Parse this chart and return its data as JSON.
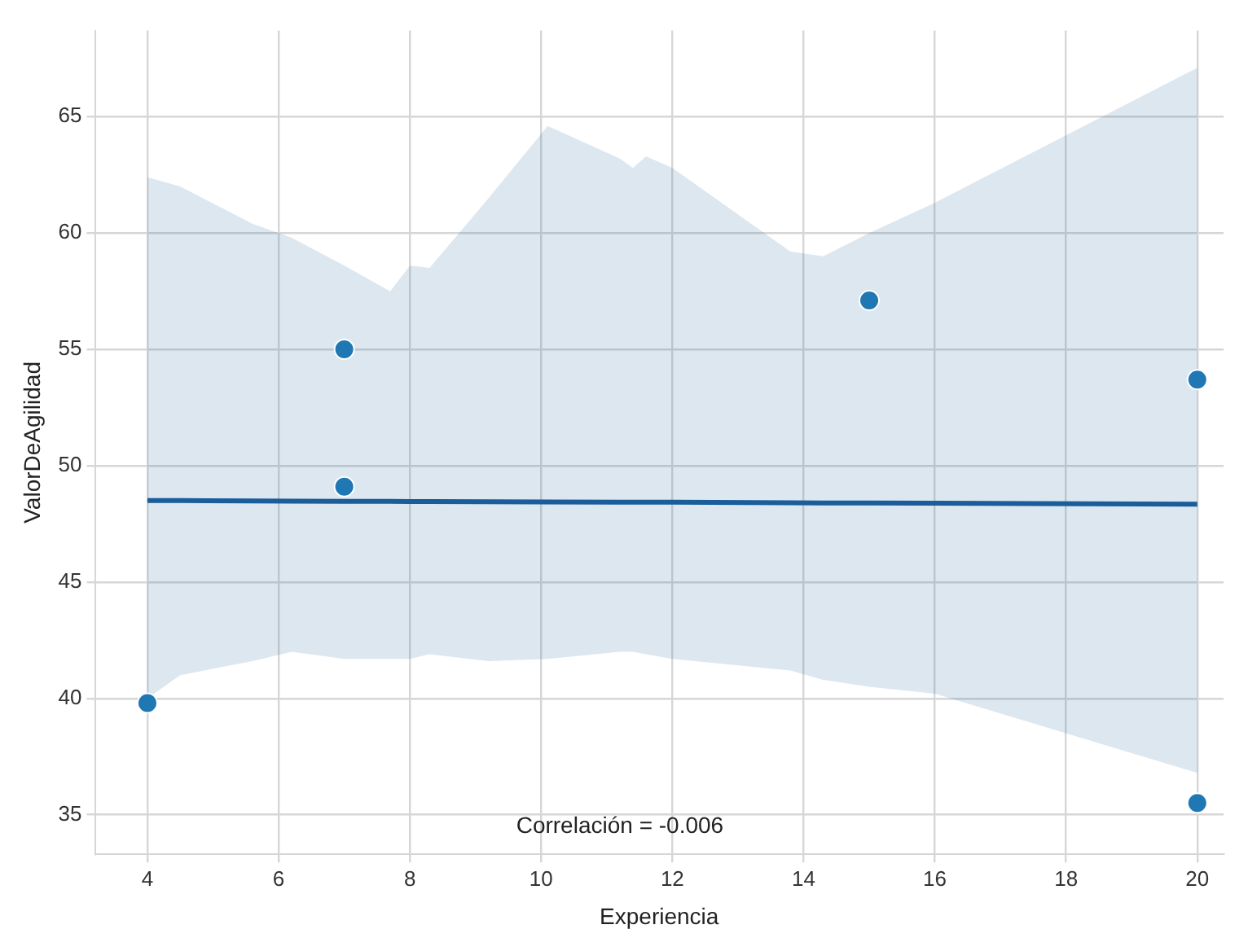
{
  "chart_data": {
    "type": "scatter",
    "xlabel": "Experiencia",
    "ylabel": "ValorDeAgilidad",
    "annotations": [
      "Correlación = -0.006"
    ],
    "series": [
      {
        "color": "#1f77b4",
        "marker": "circle",
        "x": [
          4,
          7,
          7,
          15,
          20,
          20
        ],
        "values": [
          39.8,
          55.0,
          49.1,
          57.1,
          53.7,
          35.5
        ]
      },
      {
        "type": "line",
        "color": "#1a5d9a",
        "x": [
          4,
          4.5,
          5.6,
          6.2,
          7,
          7.7,
          8,
          8.3,
          9.2,
          10.1,
          11.2,
          11.4,
          11.6,
          12,
          13.8,
          14.3,
          15,
          16,
          20
        ],
        "values": [
          48.5,
          48.5,
          48.49,
          48.48,
          48.47,
          48.47,
          48.46,
          48.46,
          48.45,
          48.44,
          48.43,
          48.43,
          48.43,
          48.43,
          48.41,
          48.4,
          48.4,
          48.39,
          48.35
        ],
        "upper": [
          62.4,
          62.0,
          60.4,
          59.8,
          58.6,
          57.5,
          58.6,
          58.5,
          61.5,
          64.6,
          63.2,
          62.8,
          63.3,
          62.8,
          59.2,
          59.0,
          60.0,
          61.3,
          67.1
        ],
        "lower": [
          40.0,
          41.0,
          41.6,
          42.0,
          41.7,
          41.7,
          41.7,
          41.9,
          41.6,
          41.7,
          42.0,
          42.0,
          41.9,
          41.7,
          41.2,
          40.8,
          40.5,
          40.2,
          36.8
        ]
      }
    ],
    "xlim": [
      3.2,
      20.4
    ],
    "xticks": [
      4,
      6,
      8,
      10,
      12,
      14,
      16,
      18,
      20
    ],
    "ylim": [
      33.3,
      68.7
    ],
    "yticks": [
      35,
      40,
      45,
      50,
      55,
      60,
      65
    ],
    "grid": true
  }
}
